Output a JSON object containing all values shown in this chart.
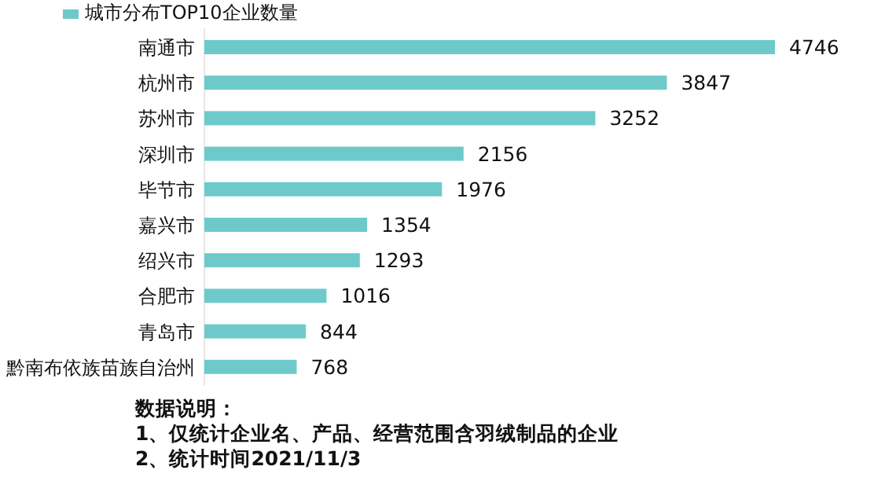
{
  "chart_data": {
    "type": "bar",
    "orientation": "horizontal",
    "legend": "top left",
    "data_labels": true,
    "categories": [
      "南通市",
      "杭州市",
      "苏州市",
      "深圳市",
      "毕节市",
      "嘉兴市",
      "绍兴市",
      "合肥市",
      "青岛市",
      "黔南布依族苗族自治州"
    ],
    "series": [
      {
        "name": "城市分布TOP10企业数量",
        "color": "#6ecaca",
        "values": [
          4746,
          3847,
          3252,
          2156,
          1976,
          1354,
          1293,
          1016,
          844,
          768
        ]
      }
    ],
    "annotations": [
      "数据说明：",
      "1、仅统计企业名、产品、经营范围含羽绒制品的企业",
      "2、统计时间2021/11/3"
    ]
  }
}
